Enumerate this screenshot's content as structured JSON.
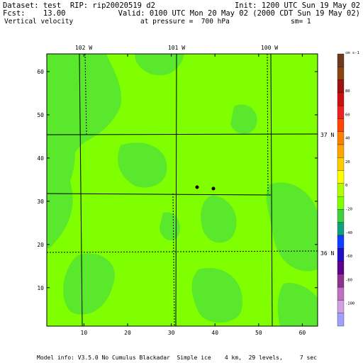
{
  "header": {
    "dataset": "Dataset: test  RIP: rip20020519 d2",
    "init": "Init: 1200 UTC Sun 19 May 02",
    "fcst": "Fcst:    13.00",
    "valid": "Valid: 0100 UTC Mon 20 May 02 (2000 CDT Sun 19 May 02)",
    "field": "Vertical velocity",
    "level": "at pressure =  700 hPa",
    "smooth": "sm= 1"
  },
  "map": {
    "xlim": [
      1.5,
      63.5
    ],
    "ylim": [
      1.1,
      64.1
    ],
    "xticks": [
      10,
      20,
      30,
      40,
      50,
      60
    ],
    "yticks": [
      10,
      20,
      30,
      40,
      50,
      60
    ],
    "longitudes": [
      "102 W",
      "101 W",
      "100 W"
    ],
    "latitudes": [
      "37 N",
      "36 N"
    ]
  },
  "colorbar": {
    "unit": "cm s-1",
    "labels": [
      80,
      60,
      40,
      20,
      0,
      -20,
      -40,
      -60,
      -80,
      -100
    ],
    "colors": [
      "#6b3a1f",
      "#8b4513",
      "#a01010",
      "#cc1010",
      "#ee2020",
      "#ff4500",
      "#ff7f00",
      "#ffa500",
      "#ffcc00",
      "#ffff00",
      "#b0ff00",
      "#80ff00",
      "#40d040",
      "#10a080",
      "#1040ff",
      "#2010c0",
      "#600090",
      "#903090",
      "#c070c0",
      "#d0a0e0",
      "#a0a0ff"
    ]
  },
  "footer": "Model info: V3.5.0 No Cumulus Blackadar  Simple ice    4 km,  29 levels,     7 sec"
}
